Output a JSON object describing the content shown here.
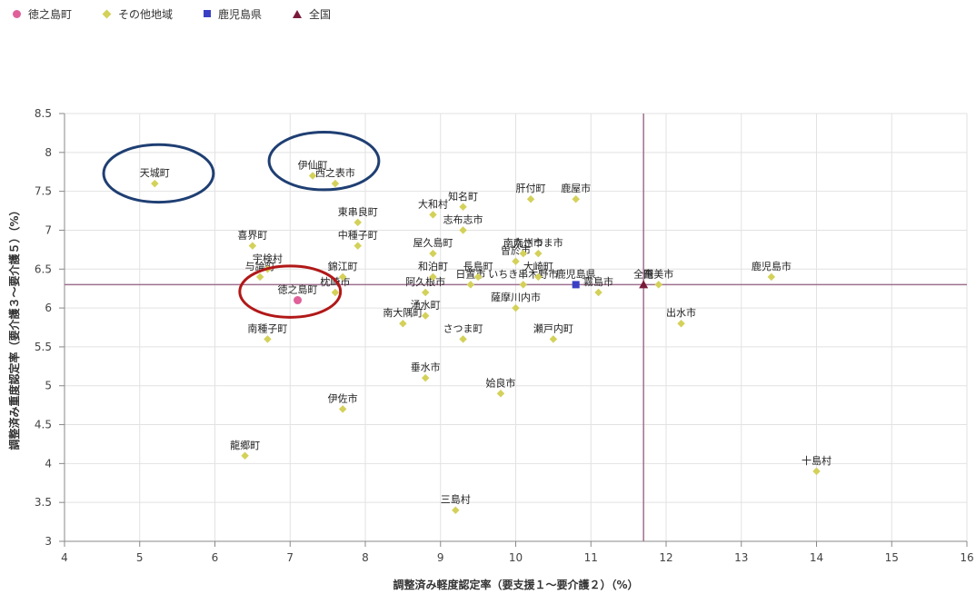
{
  "legend": [
    {
      "name": "徳之島町",
      "shape": "circle",
      "color": "#e0609a"
    },
    {
      "name": "その他地域",
      "shape": "diamond",
      "color": "#d4d15a"
    },
    {
      "name": "鹿児島県",
      "shape": "square",
      "color": "#3a3fc4"
    },
    {
      "name": "全国",
      "shape": "triangle",
      "color": "#7a1a3a"
    }
  ],
  "colors": {
    "highlight": "#e0609a",
    "other": "#d4d15a",
    "prefecture": "#3a3fc4",
    "national": "#7a1a3a",
    "refline": "#a07090",
    "grid": "#e2e2e2",
    "blue_ellipse": "#1f3f73",
    "red_ellipse": "#b11818"
  },
  "chart_data": {
    "type": "scatter",
    "xlabel": "調整済み軽度認定率（要支援１～要介護２）（%）",
    "ylabel": "調整済み重度認定率（要介護３～要介護５）（%）",
    "xlim": [
      4,
      16
    ],
    "ylim": [
      3,
      8.5
    ],
    "xticks": [
      "4",
      "5",
      "6",
      "7",
      "8",
      "9",
      "10",
      "11",
      "12",
      "13",
      "14",
      "15",
      "16"
    ],
    "yticks": [
      "3",
      "3.5",
      "4",
      "4.5",
      "5",
      "5.5",
      "6",
      "6.5",
      "7",
      "7.5",
      "8",
      "8.5"
    ],
    "grid": "vertical and horizontal",
    "legend_position": "top-left",
    "reference_lines": {
      "x": 11.7,
      "y": 6.3
    },
    "series": [
      {
        "name": "徳之島町",
        "shape": "circle",
        "points": [
          {
            "x": 7.1,
            "y": 6.1,
            "label": "徳之島町"
          }
        ]
      },
      {
        "name": "その他地域",
        "shape": "diamond",
        "points": [
          {
            "x": 5.2,
            "y": 7.6,
            "label": "天城町"
          },
          {
            "x": 7.3,
            "y": 7.7,
            "label": "伊仙町"
          },
          {
            "x": 7.6,
            "y": 7.6,
            "label": "西之表市"
          },
          {
            "x": 7.9,
            "y": 7.1,
            "label": "東串良町"
          },
          {
            "x": 7.9,
            "y": 6.8,
            "label": "中種子町"
          },
          {
            "x": 6.5,
            "y": 6.8,
            "label": "喜界町"
          },
          {
            "x": 6.7,
            "y": 6.5,
            "label": "宇検村"
          },
          {
            "x": 6.6,
            "y": 6.4,
            "label": "与論町"
          },
          {
            "x": 7.7,
            "y": 6.4,
            "label": "錦江町"
          },
          {
            "x": 7.6,
            "y": 6.2,
            "label": "枕崎市"
          },
          {
            "x": 6.7,
            "y": 5.6,
            "label": "南種子町"
          },
          {
            "x": 8.9,
            "y": 7.2,
            "label": "大和村"
          },
          {
            "x": 9.3,
            "y": 7.3,
            "label": "知名町"
          },
          {
            "x": 9.3,
            "y": 7.0,
            "label": "志布志市"
          },
          {
            "x": 8.9,
            "y": 6.7,
            "label": "屋久島町"
          },
          {
            "x": 8.9,
            "y": 6.4,
            "label": "和泊町"
          },
          {
            "x": 8.8,
            "y": 6.2,
            "label": "阿久根市"
          },
          {
            "x": 8.8,
            "y": 5.9,
            "label": "湧水町"
          },
          {
            "x": 8.5,
            "y": 5.8,
            "label": "南大隅町"
          },
          {
            "x": 9.3,
            "y": 5.6,
            "label": "さつま町"
          },
          {
            "x": 9.5,
            "y": 6.4,
            "label": "長島町"
          },
          {
            "x": 9.4,
            "y": 6.3,
            "label": "日置市"
          },
          {
            "x": 10.1,
            "y": 6.3,
            "label": "いちき串木野市"
          },
          {
            "x": 10.0,
            "y": 6.0,
            "label": "薩摩川内市"
          },
          {
            "x": 10.2,
            "y": 7.4,
            "label": "肝付町"
          },
          {
            "x": 10.8,
            "y": 7.4,
            "label": "鹿屋市"
          },
          {
            "x": 10.1,
            "y": 6.7,
            "label": "南九州市"
          },
          {
            "x": 10.3,
            "y": 6.7,
            "label": "南さつま市"
          },
          {
            "x": 10.0,
            "y": 6.6,
            "label": "曽於市"
          },
          {
            "x": 10.3,
            "y": 6.4,
            "label": "大崎町"
          },
          {
            "x": 11.1,
            "y": 6.2,
            "label": "霧島市"
          },
          {
            "x": 10.5,
            "y": 5.6,
            "label": "瀬戸内町"
          },
          {
            "x": 11.9,
            "y": 6.3,
            "label": "奄美市"
          },
          {
            "x": 13.4,
            "y": 6.4,
            "label": "鹿児島市"
          },
          {
            "x": 12.2,
            "y": 5.8,
            "label": "出水市"
          },
          {
            "x": 8.8,
            "y": 5.1,
            "label": "垂水市"
          },
          {
            "x": 9.8,
            "y": 4.9,
            "label": "姶良市"
          },
          {
            "x": 7.7,
            "y": 4.7,
            "label": "伊佐市"
          },
          {
            "x": 6.4,
            "y": 4.1,
            "label": "龍郷町"
          },
          {
            "x": 14.0,
            "y": 3.9,
            "label": "十島村"
          },
          {
            "x": 9.2,
            "y": 3.4,
            "label": "三島村"
          }
        ]
      },
      {
        "name": "鹿児島県",
        "shape": "square",
        "points": [
          {
            "x": 10.8,
            "y": 6.3,
            "label": "鹿児島県"
          }
        ]
      },
      {
        "name": "全国",
        "shape": "triangle",
        "points": [
          {
            "x": 11.7,
            "y": 6.3,
            "label": "全国"
          }
        ]
      }
    ],
    "annotations": [
      {
        "type": "ellipse",
        "color": "blue",
        "center": {
          "x": 5.25,
          "y": 7.73
        },
        "rx": 0.73,
        "ry": 0.37
      },
      {
        "type": "ellipse",
        "color": "blue",
        "center": {
          "x": 7.45,
          "y": 7.89
        },
        "rx": 0.73,
        "ry": 0.37
      },
      {
        "type": "ellipse",
        "color": "red",
        "center": {
          "x": 7.0,
          "y": 6.21
        },
        "rx": 0.67,
        "ry": 0.33
      }
    ]
  }
}
